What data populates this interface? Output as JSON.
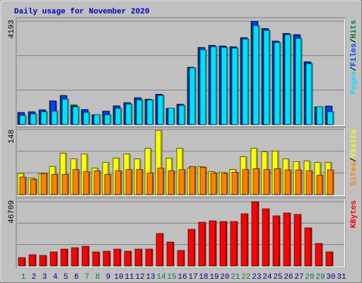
{
  "title": "Daily usage for November 2020",
  "chart_data": [
    {
      "type": "bar",
      "series": [
        {
          "name": "Hits",
          "color": "#008040",
          "values": [
            490,
            520,
            600,
            960,
            1180,
            800,
            610,
            400,
            545,
            760,
            890,
            1090,
            1030,
            1230,
            660,
            830,
            2325,
            3130,
            3215,
            3190,
            3160,
            3530,
            4193,
            3900,
            3390,
            3700,
            3650,
            2550,
            720,
            750,
            0
          ]
        },
        {
          "name": "Files",
          "color": "#0040ff",
          "values": [
            480,
            510,
            590,
            950,
            1170,
            740,
            600,
            390,
            540,
            750,
            880,
            1080,
            1020,
            1220,
            650,
            820,
            2310,
            3120,
            3200,
            3180,
            3150,
            3520,
            4180,
            3890,
            3380,
            3690,
            3640,
            2540,
            710,
            740,
            0
          ]
        },
        {
          "name": "Pages",
          "color": "#00e0ff",
          "values": [
            370,
            430,
            520,
            545,
            1030,
            720,
            490,
            400,
            400,
            660,
            830,
            1000,
            1000,
            1180,
            660,
            775,
            2300,
            3040,
            3160,
            3130,
            3100,
            3470,
            4020,
            3820,
            3330,
            3650,
            3500,
            2470,
            720,
            520,
            0
          ]
        }
      ],
      "ylim": [
        0,
        4193
      ],
      "yticks": [
        4193
      ],
      "legend_separator": "/"
    },
    {
      "type": "bar",
      "series": [
        {
          "name": "Visits",
          "color": "#ffff00",
          "values": [
            48,
            38,
            48,
            64,
            94,
            81,
            92,
            60,
            73,
            83,
            92,
            81,
            105,
            146,
            83,
            105,
            60,
            64,
            52,
            51,
            57,
            86,
            105,
            97,
            99,
            81,
            75,
            76,
            73,
            73,
            0
          ]
        },
        {
          "name": "Sites",
          "color": "#ff8000",
          "values": [
            40,
            35,
            48,
            46,
            46,
            57,
            52,
            54,
            46,
            54,
            57,
            57,
            49,
            60,
            54,
            57,
            64,
            62,
            49,
            48,
            51,
            57,
            59,
            57,
            59,
            56,
            56,
            54,
            44,
            56,
            0
          ]
        }
      ],
      "ylim": [
        0,
        148
      ],
      "yticks": [
        148
      ],
      "legend_separator": "/"
    },
    {
      "type": "bar",
      "categories": [
        "1",
        "2",
        "3",
        "4",
        "5",
        "6",
        "7",
        "8",
        "9",
        "10",
        "11",
        "12",
        "13",
        "14",
        "15",
        "16",
        "17",
        "18",
        "19",
        "20",
        "21",
        "22",
        "23",
        "24",
        "25",
        "26",
        "27",
        "28",
        "29",
        "30",
        "31"
      ],
      "category_colors": [
        "#008040",
        "#00008b",
        "#00008b",
        "#00008b",
        "#00008b",
        "#00008b",
        "#008040",
        "#008040",
        "#00008b",
        "#00008b",
        "#00008b",
        "#00008b",
        "#00008b",
        "#008040",
        "#008040",
        "#00008b",
        "#00008b",
        "#00008b",
        "#00008b",
        "#00008b",
        "#008040",
        "#008040",
        "#00008b",
        "#00008b",
        "#00008b",
        "#00008b",
        "#00008b",
        "#008040",
        "#008040",
        "#00008b",
        "#00008b"
      ],
      "series": [
        {
          "name": "KBytes",
          "color": "#ff0000",
          "values": [
            6150,
            8200,
            7700,
            10260,
            12300,
            13300,
            14360,
            10260,
            10770,
            12300,
            10770,
            12300,
            12300,
            23600,
            17440,
            11290,
            26680,
            31800,
            32830,
            32320,
            32320,
            37960,
            46709,
            41560,
            36430,
            38480,
            37450,
            27700,
            16420,
            10260,
            0
          ]
        }
      ],
      "ylim": [
        0,
        46709
      ],
      "yticks": [
        46709
      ]
    }
  ]
}
